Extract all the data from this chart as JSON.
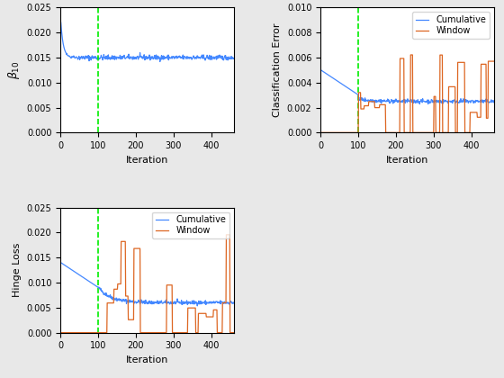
{
  "n_iter": 460,
  "vline_x": 100,
  "vline_color": "#00ee00",
  "vline_style": "--",
  "cumulative_color": "#4488ff",
  "window_color": "#dd6622",
  "beta_ylim": [
    0,
    0.025
  ],
  "beta_yticks": [
    0,
    0.005,
    0.01,
    0.015,
    0.02,
    0.025
  ],
  "clf_ylim": [
    0,
    0.01
  ],
  "clf_yticks": [
    0,
    0.002,
    0.004,
    0.006,
    0.008,
    0.01
  ],
  "hinge_ylim": [
    0,
    0.025
  ],
  "hinge_yticks": [
    0,
    0.005,
    0.01,
    0.015,
    0.02,
    0.025
  ],
  "xlim": [
    0,
    460
  ],
  "xticks": [
    0,
    100,
    200,
    300,
    400
  ],
  "xlabel": "Iteration",
  "ylabel_beta": "$\\beta_{10}$",
  "ylabel_clf": "Classification Error",
  "ylabel_hinge": "Hinge Loss",
  "legend_cumulative": "Cumulative",
  "legend_window": "Window",
  "seed": 42,
  "fig_width": 5.6,
  "fig_height": 4.2,
  "dpi": 100,
  "linewidth": 0.9,
  "bg_color": "#e8e8e8"
}
